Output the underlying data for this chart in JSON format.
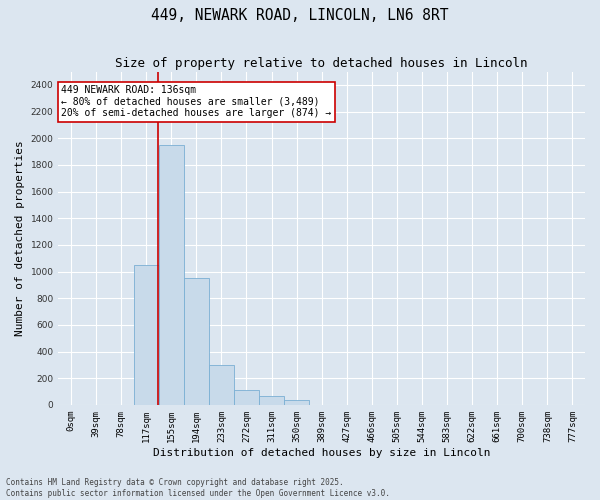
{
  "title": "449, NEWARK ROAD, LINCOLN, LN6 8RT",
  "subtitle": "Size of property relative to detached houses in Lincoln",
  "xlabel": "Distribution of detached houses by size in Lincoln",
  "ylabel": "Number of detached properties",
  "categories": [
    "0sqm",
    "39sqm",
    "78sqm",
    "117sqm",
    "155sqm",
    "194sqm",
    "233sqm",
    "272sqm",
    "311sqm",
    "350sqm",
    "389sqm",
    "427sqm",
    "466sqm",
    "505sqm",
    "544sqm",
    "583sqm",
    "622sqm",
    "661sqm",
    "700sqm",
    "738sqm",
    "777sqm"
  ],
  "values": [
    0,
    0,
    0,
    1050,
    1950,
    950,
    300,
    115,
    65,
    40,
    0,
    0,
    0,
    0,
    0,
    0,
    0,
    0,
    0,
    0,
    0
  ],
  "bar_color": "#c8daea",
  "bar_edge_color": "#7aafd4",
  "background_color": "#dce6f0",
  "grid_color": "#ffffff",
  "ylim": [
    0,
    2500
  ],
  "yticks": [
    0,
    200,
    400,
    600,
    800,
    1000,
    1200,
    1400,
    1600,
    1800,
    2000,
    2200,
    2400
  ],
  "annotation_text": "449 NEWARK ROAD: 136sqm\n← 80% of detached houses are smaller (3,489)\n20% of semi-detached houses are larger (874) →",
  "annotation_box_color": "#ffffff",
  "annotation_box_edge": "#cc0000",
  "footer_line1": "Contains HM Land Registry data © Crown copyright and database right 2025.",
  "footer_line2": "Contains public sector information licensed under the Open Government Licence v3.0.",
  "title_fontsize": 10.5,
  "subtitle_fontsize": 9,
  "tick_fontsize": 6.5,
  "ylabel_fontsize": 8,
  "xlabel_fontsize": 8,
  "annotation_fontsize": 7,
  "footer_fontsize": 5.5
}
